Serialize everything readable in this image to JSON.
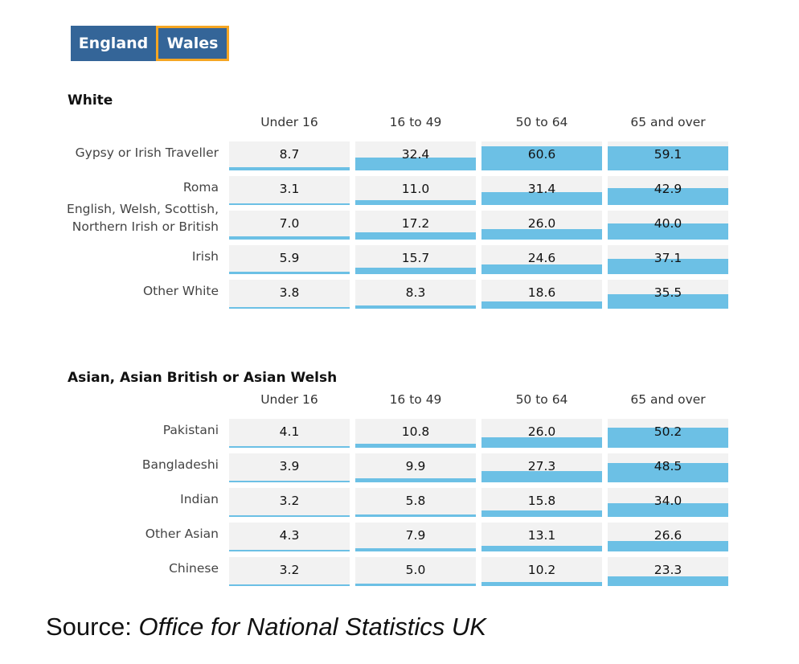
{
  "tabs": [
    {
      "label": "England",
      "selected": false,
      "color": "#346598"
    },
    {
      "label": "Wales",
      "selected": true,
      "color": "#346598",
      "border": "#f5a623"
    }
  ],
  "bar_color": "#6cc0e5",
  "source": {
    "prefix": "Source: ",
    "name": "Office for National Statistics UK"
  },
  "chart_data": [
    {
      "type": "table",
      "title": "White",
      "columns": [
        "Under 16",
        "16 to 49",
        "50 to 64",
        "65 and over"
      ],
      "rows": [
        {
          "label": "Gypsy or Irish Traveller",
          "values": [
            8.7,
            32.4,
            60.6,
            59.1
          ]
        },
        {
          "label": "Roma",
          "values": [
            3.1,
            11.0,
            31.4,
            42.9
          ]
        },
        {
          "label": "English, Welsh, Scottish, Northern Irish or British",
          "label_lines": [
            "English, Welsh, Scottish,",
            "Northern Irish or British"
          ],
          "values": [
            7.0,
            17.2,
            26.0,
            40.0
          ]
        },
        {
          "label": "Irish",
          "values": [
            5.9,
            15.7,
            24.6,
            37.1
          ]
        },
        {
          "label": "Other White",
          "values": [
            3.8,
            8.3,
            18.6,
            35.5
          ]
        }
      ]
    },
    {
      "type": "table",
      "title": "Asian, Asian British or Asian Welsh",
      "columns": [
        "Under 16",
        "16 to 49",
        "50 to 64",
        "65 and over"
      ],
      "rows": [
        {
          "label": "Pakistani",
          "values": [
            4.1,
            10.8,
            26.0,
            50.2
          ]
        },
        {
          "label": "Bangladeshi",
          "values": [
            3.9,
            9.9,
            27.3,
            48.5
          ]
        },
        {
          "label": "Indian",
          "values": [
            3.2,
            5.8,
            15.8,
            34.0
          ]
        },
        {
          "label": "Other Asian",
          "values": [
            4.3,
            7.9,
            13.1,
            26.6
          ]
        },
        {
          "label": "Chinese",
          "values": [
            3.2,
            5.0,
            10.2,
            23.3
          ]
        }
      ]
    }
  ]
}
